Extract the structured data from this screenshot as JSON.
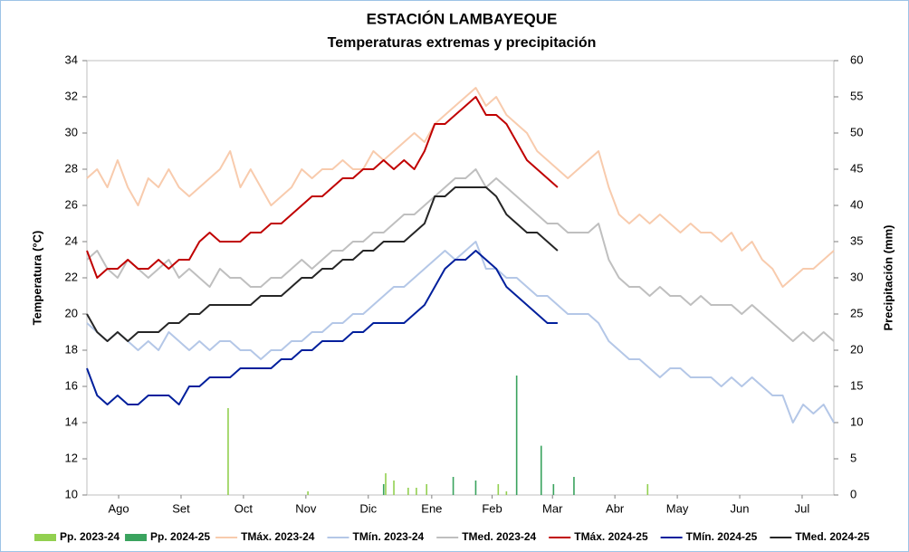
{
  "chart_data": {
    "type": "line",
    "title": "ESTACIÓN LAMBAYEQUE",
    "subtitle": "Temperaturas extremas y precipitación",
    "y_label": "Temperatura (°C)",
    "y2_label": "Precipitación (mm)",
    "xlim": [
      0,
      365
    ],
    "xticks": [
      {
        "value": 15.5,
        "label": "Ago"
      },
      {
        "value": 46,
        "label": "Set"
      },
      {
        "value": 76.5,
        "label": "Oct"
      },
      {
        "value": 107,
        "label": "Nov"
      },
      {
        "value": 137.5,
        "label": "Dic"
      },
      {
        "value": 168.5,
        "label": "Ene"
      },
      {
        "value": 198,
        "label": "Feb"
      },
      {
        "value": 227.5,
        "label": "Mar"
      },
      {
        "value": 258,
        "label": "Abr"
      },
      {
        "value": 288.5,
        "label": "May"
      },
      {
        "value": 319,
        "label": "Jun"
      },
      {
        "value": 349.5,
        "label": "Jul"
      }
    ],
    "ylim": [
      10,
      34
    ],
    "yticks": [
      10,
      12,
      14,
      16,
      18,
      20,
      22,
      24,
      26,
      28,
      30,
      32,
      34
    ],
    "y2lim": [
      0,
      60
    ],
    "y2ticks": [
      0,
      5,
      10,
      15,
      20,
      25,
      30,
      35,
      40,
      45,
      50,
      55,
      60
    ],
    "x": [
      0,
      5,
      10,
      15,
      20,
      25,
      30,
      35,
      40,
      45,
      50,
      55,
      60,
      65,
      70,
      75,
      80,
      85,
      90,
      95,
      100,
      105,
      110,
      115,
      120,
      125,
      130,
      135,
      140,
      145,
      150,
      155,
      160,
      165,
      170,
      175,
      180,
      185,
      190,
      195,
      200,
      205,
      210,
      215,
      220,
      225,
      230,
      235,
      240,
      245,
      250,
      255,
      260,
      265,
      270,
      275,
      280,
      285,
      290,
      295,
      300,
      305,
      310,
      315,
      320,
      325,
      330,
      335,
      340,
      345,
      350,
      355,
      360,
      365
    ],
    "series": [
      {
        "name": "Pp. 2023-24",
        "type": "bar",
        "axis": "y2",
        "color": "#92d050",
        "x": [
          69,
          108,
          146,
          150,
          157,
          161,
          166,
          201,
          205,
          274
        ],
        "values": [
          12,
          0.5,
          3,
          2,
          1,
          1,
          1.5,
          1.5,
          0.5,
          1.5
        ]
      },
      {
        "name": "Pp. 2024-25",
        "type": "bar",
        "axis": "y2",
        "color": "#3aa35e",
        "x": [
          145,
          179,
          190,
          210,
          222,
          228,
          238
        ],
        "values": [
          1.5,
          2.5,
          2,
          16.5,
          6.8,
          1.5,
          2.5
        ]
      },
      {
        "name": "TMáx. 2023-24",
        "color": "#f8cbad",
        "values": [
          27.5,
          28,
          27,
          28.5,
          27,
          26,
          27.5,
          27,
          28,
          27,
          26.5,
          27,
          27.5,
          28,
          29,
          27,
          28,
          27,
          26,
          26.5,
          27,
          28,
          27.5,
          28,
          28,
          28.5,
          28,
          28,
          29,
          28.5,
          29,
          29.5,
          30,
          29.5,
          30.5,
          31,
          31.5,
          32,
          32.5,
          31.5,
          32,
          31,
          30.5,
          30,
          29,
          28.5,
          28,
          27.5,
          28,
          28.5,
          29,
          27,
          25.5,
          25,
          25.5,
          25,
          25.5,
          25,
          24.5,
          25,
          24.5,
          24.5,
          24,
          24.5,
          23.5,
          24,
          23,
          22.5,
          21.5,
          22,
          22.5,
          22.5,
          23,
          23.5
        ]
      },
      {
        "name": "TMín. 2023-24",
        "color": "#b4c7e7",
        "values": [
          19.5,
          19,
          18.5,
          19,
          18.5,
          18,
          18.5,
          18,
          19,
          18.5,
          18,
          18.5,
          18,
          18.5,
          18.5,
          18,
          18,
          17.5,
          18,
          18,
          18.5,
          18.5,
          19,
          19,
          19.5,
          19.5,
          20,
          20,
          20.5,
          21,
          21.5,
          21.5,
          22,
          22.5,
          23,
          23.5,
          23,
          23.5,
          24,
          22.5,
          22.5,
          22,
          22,
          21.5,
          21,
          21,
          20.5,
          20,
          20,
          20,
          19.5,
          18.5,
          18,
          17.5,
          17.5,
          17,
          16.5,
          17,
          17,
          16.5,
          16.5,
          16.5,
          16,
          16.5,
          16,
          16.5,
          16,
          15.5,
          15.5,
          14,
          15,
          14.5,
          15,
          14
        ]
      },
      {
        "name": "TMed. 2023-24",
        "color": "#bfbfbf",
        "values": [
          23,
          23.5,
          22.5,
          22,
          23,
          22.5,
          22,
          22.5,
          23,
          22,
          22.5,
          22,
          21.5,
          22.5,
          22,
          22,
          21.5,
          21.5,
          22,
          22,
          22.5,
          23,
          22.5,
          23,
          23.5,
          23.5,
          24,
          24,
          24.5,
          24.5,
          25,
          25.5,
          25.5,
          26,
          26.5,
          27,
          27.5,
          27.5,
          28,
          27,
          27.5,
          27,
          26.5,
          26,
          25.5,
          25,
          25,
          24.5,
          24.5,
          24.5,
          25,
          23,
          22,
          21.5,
          21.5,
          21,
          21.5,
          21,
          21,
          20.5,
          21,
          20.5,
          20.5,
          20.5,
          20,
          20.5,
          20,
          19.5,
          19,
          18.5,
          19,
          18.5,
          19,
          18.5
        ]
      },
      {
        "name": "TMáx. 2024-25",
        "color": "#c00000",
        "values": [
          23.5,
          22,
          22.5,
          22.5,
          23,
          22.5,
          22.5,
          23,
          22.5,
          23,
          23,
          24,
          24.5,
          24,
          24,
          24,
          24.5,
          24.5,
          25,
          25,
          25.5,
          26,
          26.5,
          26.5,
          27,
          27.5,
          27.5,
          28,
          28,
          28.5,
          28,
          28.5,
          28,
          29,
          30.5,
          30.5,
          31,
          31.5,
          32,
          31,
          31,
          30.5,
          29.5,
          28.5,
          28,
          27.5,
          27,
          null,
          null,
          null,
          null,
          null,
          null,
          null,
          null,
          null,
          null,
          null,
          null,
          null,
          null,
          null,
          null,
          null,
          null,
          null,
          null,
          null,
          null,
          null,
          null,
          null,
          null,
          null
        ]
      },
      {
        "name": "TMín. 2024-25",
        "color": "#001f9c",
        "values": [
          17,
          15.5,
          15,
          15.5,
          15,
          15,
          15.5,
          15.5,
          15.5,
          15,
          16,
          16,
          16.5,
          16.5,
          16.5,
          17,
          17,
          17,
          17,
          17.5,
          17.5,
          18,
          18,
          18.5,
          18.5,
          18.5,
          19,
          19,
          19.5,
          19.5,
          19.5,
          19.5,
          20,
          20.5,
          21.5,
          22.5,
          23,
          23,
          23.5,
          23,
          22.5,
          21.5,
          21,
          20.5,
          20,
          19.5,
          19.5,
          null,
          null,
          null,
          null,
          null,
          null,
          null,
          null,
          null,
          null,
          null,
          null,
          null,
          null,
          null,
          null,
          null,
          null,
          null,
          null,
          null,
          null,
          null,
          null,
          null,
          null,
          null
        ]
      },
      {
        "name": "TMed. 2024-25",
        "color": "#262626",
        "values": [
          20,
          19,
          18.5,
          19,
          18.5,
          19,
          19,
          19,
          19.5,
          19.5,
          20,
          20,
          20.5,
          20.5,
          20.5,
          20.5,
          20.5,
          21,
          21,
          21,
          21.5,
          22,
          22,
          22.5,
          22.5,
          23,
          23,
          23.5,
          23.5,
          24,
          24,
          24,
          24.5,
          25,
          26.5,
          26.5,
          27,
          27,
          27,
          27,
          26.5,
          25.5,
          25,
          24.5,
          24.5,
          24,
          23.5,
          null,
          null,
          null,
          null,
          null,
          null,
          null,
          null,
          null,
          null,
          null,
          null,
          null,
          null,
          null,
          null,
          null,
          null,
          null,
          null,
          null,
          null,
          null,
          null,
          null,
          null,
          null
        ]
      }
    ]
  }
}
